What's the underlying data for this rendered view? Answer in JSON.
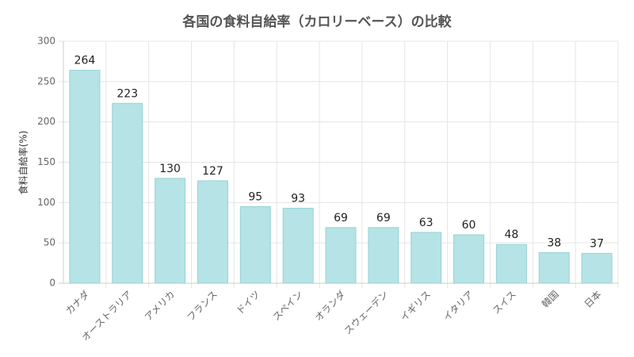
{
  "chart_data": {
    "type": "bar",
    "title": "各国の食料自給率（カロリーベース）の比較",
    "y_label": "食料自給率(%)",
    "categories": [
      "カナダ",
      "オーストラリア",
      "アメリカ",
      "フランス",
      "ドイツ",
      "スペイン",
      "オランダ",
      "スウェーデン",
      "イギリス",
      "イタリア",
      "スイス",
      "韓国",
      "日本"
    ],
    "values": [
      264,
      223,
      130,
      127,
      95,
      93,
      69,
      69,
      63,
      60,
      48,
      38,
      37
    ],
    "color": "#b6e3e5",
    "border_color": "#96d3d6",
    "ylim": [
      0,
      300
    ],
    "yticks": [
      0,
      50,
      100,
      150,
      200,
      250,
      300
    ],
    "grid": true
  }
}
